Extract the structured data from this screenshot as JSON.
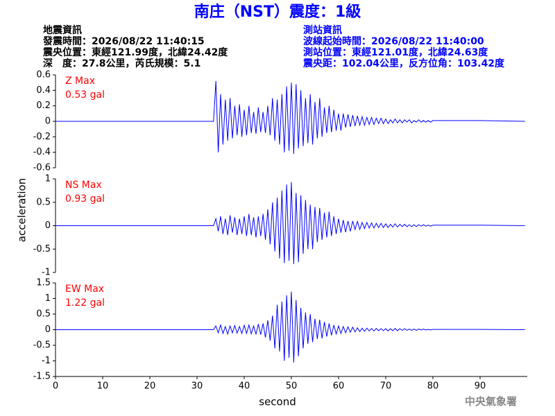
{
  "chart_data": {
    "type": "line",
    "title": "南庄（NST）震度：1級",
    "info_left": [
      "地震資訊",
      "發震時間：2026/08/22 11:40:15",
      "震央位置：東經121.99度，北緯24.42度",
      "深　度：27.8公里，芮氏規模：5.1"
    ],
    "info_right": [
      "測站資訊",
      "波線起始時間：2026/08/22 11:40:00",
      "測站位置：東經121.01度，北緯24.63度",
      "震央距：102.04公里，反方位角：103.42度"
    ],
    "xlabel": "second",
    "ylabel": "acceleration",
    "footer": "中央氣象署",
    "xlim": [
      0,
      100
    ],
    "xticks": [
      0,
      10,
      20,
      30,
      40,
      50,
      60,
      70,
      80,
      90
    ],
    "x": [
      0,
      33.5,
      34,
      34.5,
      35,
      35.5,
      36,
      36.5,
      37,
      37.5,
      38,
      38.5,
      39,
      39.5,
      40,
      40.5,
      41,
      41.5,
      42,
      42.5,
      43,
      43.5,
      44,
      44.5,
      45,
      45.5,
      46,
      46.5,
      47,
      47.5,
      48,
      48.5,
      49,
      49.5,
      50,
      50.5,
      51,
      51.5,
      52,
      52.5,
      53,
      53.5,
      54,
      54.5,
      55,
      55.5,
      56,
      56.5,
      57,
      57.5,
      58,
      58.5,
      59,
      59.5,
      60,
      60.5,
      61,
      61.5,
      62,
      62.5,
      63,
      63.5,
      64,
      64.5,
      65,
      65.5,
      66,
      66.5,
      67,
      67.5,
      68,
      68.5,
      69,
      69.5,
      70,
      70.5,
      71,
      71.5,
      72,
      72.5,
      73,
      73.5,
      74,
      74.5,
      75,
      75.5,
      76,
      76.5,
      77,
      77.5,
      78,
      78.5,
      79,
      79.5,
      80,
      90,
      99.5
    ],
    "color": "#0000ff",
    "label_color": "#ff0000",
    "panels": [
      {
        "label": "Z Max",
        "max_label": "0.53 gal",
        "ylim": [
          -0.6,
          0.6
        ],
        "yticks": [
          0.6,
          0.4,
          0.2,
          0,
          -0.2,
          -0.4,
          -0.6
        ],
        "values": [
          0,
          0,
          0.52,
          -0.4,
          0.35,
          -0.3,
          0.28,
          -0.25,
          0.3,
          -0.22,
          0.2,
          -0.18,
          0.22,
          -0.2,
          0.15,
          -0.18,
          0.2,
          -0.15,
          0.12,
          -0.16,
          0.18,
          -0.14,
          0.12,
          -0.15,
          0.2,
          -0.18,
          0.3,
          -0.25,
          0.28,
          -0.3,
          0.35,
          -0.4,
          0.45,
          -0.38,
          0.5,
          -0.42,
          0.48,
          -0.35,
          0.4,
          -0.32,
          0.3,
          -0.28,
          0.35,
          -0.3,
          0.25,
          -0.22,
          0.3,
          -0.2,
          0.18,
          -0.15,
          0.2,
          -0.14,
          0.15,
          -0.12,
          0.1,
          -0.12,
          0.1,
          -0.08,
          0.09,
          -0.07,
          0.08,
          -0.06,
          0.07,
          -0.05,
          0.06,
          -0.05,
          0.05,
          -0.04,
          0.05,
          -0.04,
          0.04,
          -0.03,
          0.04,
          -0.03,
          0.03,
          -0.03,
          0.02,
          -0.02,
          0.03,
          -0.02,
          0.02,
          -0.02,
          0.02,
          -0.01,
          0.02,
          -0.02,
          0.01,
          -0.01,
          0.02,
          -0.01,
          0.01,
          -0.01,
          0.01,
          -0.01,
          0.01,
          0.01,
          0
        ]
      },
      {
        "label": "NS Max",
        "max_label": "0.93 gal",
        "ylim": [
          -1,
          1
        ],
        "yticks": [
          1,
          0.5,
          0,
          -0.5,
          -1
        ],
        "values": [
          0,
          0,
          0.15,
          -0.12,
          0.2,
          -0.18,
          0.15,
          -0.2,
          0.22,
          -0.15,
          0.18,
          -0.2,
          0.15,
          -0.18,
          0.2,
          -0.22,
          0.25,
          -0.2,
          0.18,
          -0.25,
          0.2,
          -0.22,
          0.25,
          -0.3,
          0.35,
          -0.4,
          0.5,
          -0.55,
          0.6,
          -0.7,
          0.75,
          -0.8,
          0.88,
          -0.75,
          0.93,
          -0.82,
          0.7,
          -0.78,
          0.65,
          -0.6,
          0.55,
          -0.5,
          0.45,
          -0.5,
          0.4,
          -0.35,
          0.38,
          -0.3,
          0.28,
          -0.25,
          0.3,
          -0.22,
          0.2,
          -0.18,
          0.15,
          -0.15,
          0.12,
          -0.14,
          0.1,
          -0.12,
          0.1,
          -0.08,
          0.09,
          -0.08,
          0.07,
          -0.06,
          0.07,
          -0.05,
          0.06,
          -0.05,
          0.05,
          -0.04,
          0.05,
          -0.04,
          0.04,
          -0.04,
          0.03,
          -0.03,
          0.04,
          -0.03,
          0.03,
          -0.02,
          0.03,
          -0.02,
          0.02,
          -0.02,
          0.02,
          -0.02,
          0.02,
          -0.01,
          0.02,
          -0.01,
          0.01,
          -0.01,
          0.01,
          0.01,
          0
        ]
      },
      {
        "label": "EW Max",
        "max_label": "1.22 gal",
        "ylim": [
          -1.5,
          1.5
        ],
        "yticks": [
          1.5,
          1,
          0.5,
          0,
          -0.5,
          -1,
          -1.5
        ],
        "values": [
          0,
          0,
          0.12,
          -0.1,
          0.15,
          -0.12,
          0.1,
          -0.14,
          0.12,
          -0.1,
          0.13,
          -0.11,
          0.1,
          -0.12,
          0.14,
          -0.12,
          0.15,
          -0.13,
          0.12,
          -0.15,
          0.18,
          -0.16,
          0.2,
          -0.25,
          0.3,
          -0.35,
          0.45,
          -0.6,
          0.8,
          -0.7,
          0.9,
          -1.0,
          1.1,
          -0.9,
          1.22,
          -1.05,
          0.95,
          -0.85,
          0.7,
          -0.6,
          0.55,
          -0.45,
          0.5,
          -0.4,
          0.35,
          -0.3,
          0.32,
          -0.28,
          0.25,
          -0.22,
          0.2,
          -0.18,
          0.15,
          -0.14,
          0.12,
          -0.12,
          0.1,
          -0.1,
          0.09,
          -0.08,
          0.08,
          -0.07,
          0.06,
          -0.06,
          0.05,
          -0.05,
          0.05,
          -0.04,
          0.04,
          -0.04,
          0.04,
          -0.03,
          0.03,
          -0.03,
          0.03,
          -0.04,
          0.03,
          -0.03,
          0.04,
          -0.03,
          0.03,
          -0.02,
          0.03,
          -0.02,
          0.02,
          -0.02,
          0.02,
          -0.02,
          0.02,
          -0.01,
          0.02,
          -0.01,
          0.01,
          -0.01,
          0.01,
          0.01,
          0
        ]
      }
    ]
  }
}
